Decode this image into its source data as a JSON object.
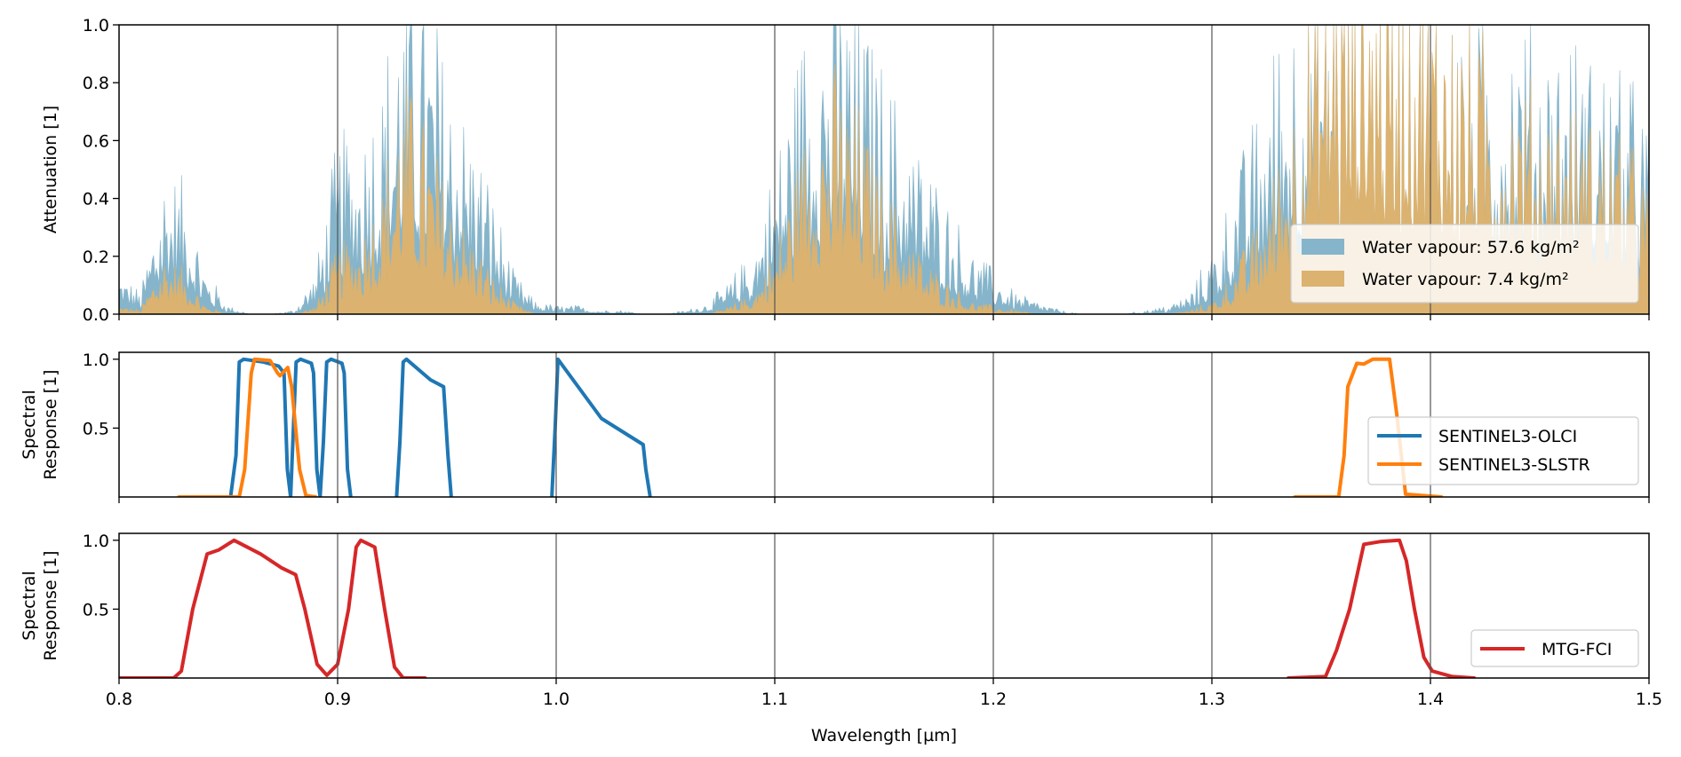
{
  "chart_data": [
    {
      "type": "area",
      "ylabel": "Attenuation [1]",
      "xlim": [
        0.8,
        1.5
      ],
      "ylim": [
        0,
        1.0
      ],
      "xticks": [
        "0.8",
        "0.9",
        "1.0",
        "1.1",
        "1.2",
        "1.3",
        "1.4",
        "1.5"
      ],
      "yticks": [
        "0.0",
        "0.2",
        "0.4",
        "0.6",
        "0.8",
        "1.0"
      ],
      "grid": "vertical",
      "legend_position": "lower-right",
      "x": [
        0.8,
        0.81,
        0.82,
        0.83,
        0.84,
        0.85,
        0.86,
        0.87,
        0.88,
        0.89,
        0.9,
        0.91,
        0.92,
        0.93,
        0.94,
        0.95,
        0.96,
        0.97,
        0.98,
        0.99,
        1.0,
        1.01,
        1.02,
        1.03,
        1.04,
        1.05,
        1.06,
        1.07,
        1.08,
        1.09,
        1.1,
        1.11,
        1.12,
        1.13,
        1.14,
        1.15,
        1.16,
        1.17,
        1.18,
        1.19,
        1.2,
        1.21,
        1.22,
        1.23,
        1.24,
        1.25,
        1.26,
        1.27,
        1.28,
        1.29,
        1.3,
        1.31,
        1.32,
        1.33,
        1.34,
        1.35,
        1.36,
        1.37,
        1.38,
        1.39,
        1.4,
        1.41,
        1.42,
        1.43,
        1.44,
        1.45,
        1.46,
        1.47,
        1.48,
        1.49,
        1.5
      ],
      "series": [
        {
          "name": "Water vapour: 57.6 kg/m²",
          "color": "#86b5cb",
          "values": [
            0.1,
            0.05,
            0.35,
            0.3,
            0.1,
            0.02,
            0,
            0,
            0.01,
            0.1,
            0.4,
            0.45,
            0.55,
            0.8,
            0.75,
            0.6,
            0.45,
            0.3,
            0.1,
            0.03,
            0.02,
            0.02,
            0.01,
            0.01,
            0,
            0,
            0.01,
            0.03,
            0.08,
            0.15,
            0.35,
            0.6,
            0.8,
            0.8,
            0.7,
            0.55,
            0.45,
            0.35,
            0.25,
            0.15,
            0.1,
            0.05,
            0.03,
            0.01,
            0,
            0,
            0,
            0.01,
            0.02,
            0.05,
            0.15,
            0.3,
            0.45,
            0.65,
            0.8,
            0.9,
            0.95,
            0.95,
            0.9,
            0.85,
            0.8,
            0.75,
            0.7,
            0.7,
            0.7,
            0.65,
            0.65,
            0.6,
            0.6,
            0.55,
            0.45
          ]
        },
        {
          "name": "Water vapour: 7.4 kg/m²",
          "color": "#dbb26f",
          "values": [
            0.02,
            0.01,
            0.15,
            0.1,
            0.02,
            0,
            0,
            0,
            0,
            0.02,
            0.15,
            0.2,
            0.3,
            0.55,
            0.45,
            0.3,
            0.2,
            0.1,
            0.03,
            0,
            0,
            0,
            0,
            0,
            0,
            0,
            0,
            0,
            0.02,
            0.05,
            0.15,
            0.35,
            0.55,
            0.55,
            0.45,
            0.3,
            0.2,
            0.12,
            0.07,
            0.03,
            0.02,
            0.01,
            0,
            0,
            0,
            0,
            0,
            0,
            0,
            0.01,
            0.03,
            0.1,
            0.2,
            0.35,
            0.6,
            0.85,
            0.95,
            1.0,
            0.95,
            0.9,
            0.85,
            0.75,
            0.65,
            0.6,
            0.55,
            0.5,
            0.5,
            0.45,
            0.45,
            0.4,
            0.3
          ]
        }
      ]
    },
    {
      "type": "line",
      "ylabel": "Spectral\nResponse [1]",
      "ylabel_lines": [
        "Spectral",
        "Response [1]"
      ],
      "xlim": [
        0.8,
        1.5
      ],
      "ylim": [
        0,
        1.05
      ],
      "yticks": [
        "0.5",
        "1.0"
      ],
      "grid": "vertical",
      "legend_position": "center-right",
      "series": [
        {
          "name": "SENTINEL3-OLCI",
          "color": "#1f77b4",
          "bands": [
            [
              [
                0.851,
                0
              ],
              [
                0.8535,
                0.3
              ],
              [
                0.855,
                0.98
              ],
              [
                0.857,
                1.0
              ],
              [
                0.866,
                0.98
              ],
              [
                0.873,
                0.95
              ],
              [
                0.8755,
                0.9
              ],
              [
                0.877,
                0.2
              ],
              [
                0.8785,
                0
              ]
            ],
            [
              [
                0.8785,
                0
              ],
              [
                0.8795,
                0.4
              ],
              [
                0.881,
                0.98
              ],
              [
                0.883,
                1.0
              ],
              [
                0.888,
                0.97
              ],
              [
                0.889,
                0.9
              ],
              [
                0.8905,
                0.2
              ],
              [
                0.892,
                0
              ]
            ],
            [
              [
                0.892,
                0
              ],
              [
                0.8935,
                0.4
              ],
              [
                0.895,
                0.98
              ],
              [
                0.897,
                1.0
              ],
              [
                0.902,
                0.97
              ],
              [
                0.903,
                0.9
              ],
              [
                0.9045,
                0.2
              ],
              [
                0.906,
                0
              ]
            ],
            [
              [
                0.927,
                0
              ],
              [
                0.9285,
                0.4
              ],
              [
                0.93,
                0.98
              ],
              [
                0.9315,
                1.0
              ],
              [
                0.9425,
                0.85
              ],
              [
                0.9485,
                0.8
              ],
              [
                0.9505,
                0.3
              ],
              [
                0.952,
                0
              ]
            ],
            [
              [
                0.998,
                0
              ],
              [
                0.9995,
                0.5
              ],
              [
                1.0008,
                1.0
              ],
              [
                1.0207,
                0.57
              ],
              [
                1.0398,
                0.38
              ],
              [
                1.041,
                0.2
              ],
              [
                1.043,
                0
              ]
            ]
          ]
        },
        {
          "name": "SENTINEL3-SLSTR",
          "color": "#ff7f0e",
          "bands": [
            [
              [
                0.8274,
                0
              ],
              [
                0.855,
                0
              ],
              [
                0.8575,
                0.2
              ],
              [
                0.8605,
                0.9
              ],
              [
                0.862,
                1.0
              ],
              [
                0.8691,
                0.99
              ],
              [
                0.8725,
                0.9
              ],
              [
                0.8736,
                0.88
              ],
              [
                0.8772,
                0.94
              ],
              [
                0.879,
                0.8
              ],
              [
                0.8826,
                0.2
              ],
              [
                0.8855,
                0.01
              ],
              [
                0.89,
                0
              ]
            ],
            [
              [
                1.338,
                0
              ],
              [
                1.358,
                0
              ],
              [
                1.3605,
                0.3
              ],
              [
                1.3622,
                0.8
              ],
              [
                1.3663,
                0.97
              ],
              [
                1.3695,
                0.965
              ],
              [
                1.3736,
                1.0
              ],
              [
                1.3813,
                1.0
              ],
              [
                1.3846,
                0.6
              ],
              [
                1.3886,
                0.02
              ],
              [
                1.405,
                0
              ]
            ]
          ]
        }
      ]
    },
    {
      "type": "line",
      "ylabel": "Spectral\nResponse [1]",
      "ylabel_lines": [
        "Spectral",
        "Response [1]"
      ],
      "xlabel": "Wavelength [µm]",
      "xlim": [
        0.8,
        1.5
      ],
      "ylim": [
        0,
        1.05
      ],
      "yticks": [
        "0.5",
        "1.0"
      ],
      "grid": "vertical",
      "legend_position": "lower-right",
      "series": [
        {
          "name": "MTG-FCI",
          "color": "#d62728",
          "bands": [
            [
              [
                0.8,
                0
              ],
              [
                0.825,
                0
              ],
              [
                0.8285,
                0.05
              ],
              [
                0.8337,
                0.5
              ],
              [
                0.8403,
                0.9
              ],
              [
                0.8457,
                0.93
              ],
              [
                0.8526,
                1.0
              ],
              [
                0.8648,
                0.9
              ],
              [
                0.8743,
                0.8
              ],
              [
                0.8808,
                0.75
              ],
              [
                0.885,
                0.5
              ],
              [
                0.8906,
                0.1
              ],
              [
                0.8951,
                0.02
              ],
              [
                0.9,
                0.1
              ],
              [
                0.905,
                0.5
              ],
              [
                0.9085,
                0.95
              ],
              [
                0.9106,
                1.0
              ],
              [
                0.917,
                0.95
              ],
              [
                0.9215,
                0.5
              ],
              [
                0.926,
                0.08
              ],
              [
                0.93,
                0
              ],
              [
                0.94,
                0
              ]
            ],
            [
              [
                1.335,
                0
              ],
              [
                1.352,
                0.01
              ],
              [
                1.357,
                0.2
              ],
              [
                1.363,
                0.5
              ],
              [
                1.3695,
                0.97
              ],
              [
                1.377,
                0.99
              ],
              [
                1.3858,
                1.0
              ],
              [
                1.389,
                0.85
              ],
              [
                1.3927,
                0.5
              ],
              [
                1.397,
                0.15
              ],
              [
                1.4008,
                0.05
              ],
              [
                1.41,
                0.01
              ],
              [
                1.42,
                0
              ]
            ]
          ]
        }
      ]
    }
  ]
}
